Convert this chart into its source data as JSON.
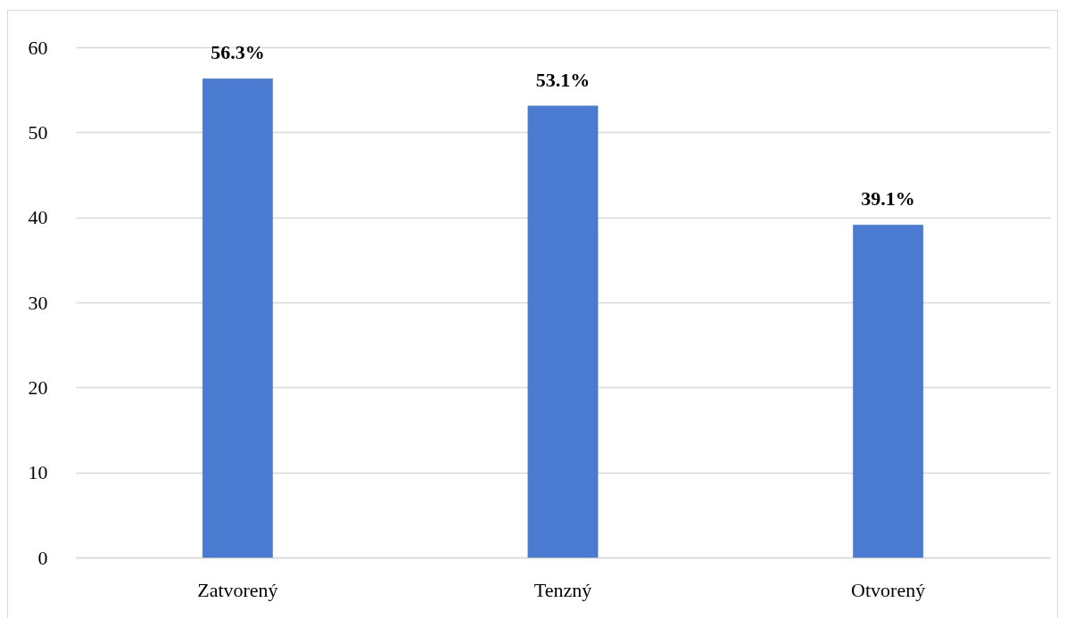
{
  "chart_data": {
    "type": "bar",
    "categories": [
      "Zatvorený",
      "Tenzný",
      "Otvorený"
    ],
    "values": [
      56.3,
      53.1,
      39.1
    ],
    "value_labels": [
      "56.3%",
      "53.1%",
      "39.1%"
    ],
    "color": "#4a7bd1",
    "ylim": [
      0,
      60
    ],
    "yticks": [
      0,
      10,
      20,
      30,
      40,
      50,
      60
    ],
    "grid": "y"
  }
}
